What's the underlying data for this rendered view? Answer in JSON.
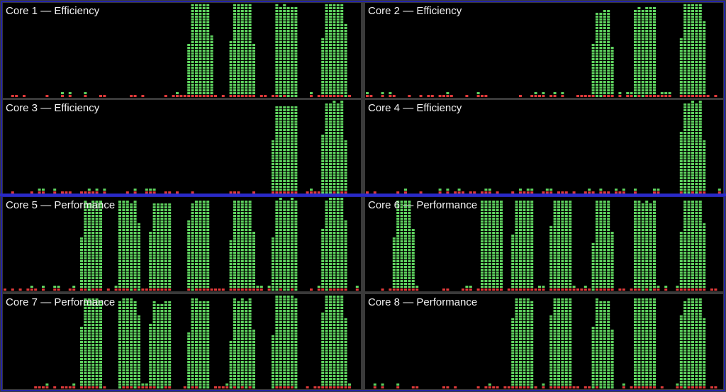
{
  "window": {
    "colors": {
      "background": "#000000",
      "gap": "#3a3a3a",
      "efficiency_group_outline": "#2424a8",
      "group_divider": "#2a2ac8",
      "user_load": "#5fd35f",
      "system_load": "#e03a3a"
    }
  },
  "cores": [
    {
      "label": "Core 1 — Efficiency",
      "type": "efficiency",
      "activity_profile": "efficiency-a"
    },
    {
      "label": "Core 2 — Efficiency",
      "type": "efficiency",
      "activity_profile": "efficiency-b"
    },
    {
      "label": "Core 3 — Efficiency",
      "type": "efficiency",
      "activity_profile": "efficiency-c"
    },
    {
      "label": "Core 4 — Efficiency",
      "type": "efficiency",
      "activity_profile": "efficiency-d"
    },
    {
      "label": "Core 5 — Performance",
      "type": "performance",
      "activity_profile": "performance-a"
    },
    {
      "label": "Core 6 — Performance",
      "type": "performance",
      "activity_profile": "performance-b"
    },
    {
      "label": "Core 7 — Performance",
      "type": "performance",
      "activity_profile": "performance-c"
    },
    {
      "label": "Core 8 — Performance",
      "type": "performance",
      "activity_profile": "performance-d"
    }
  ]
}
